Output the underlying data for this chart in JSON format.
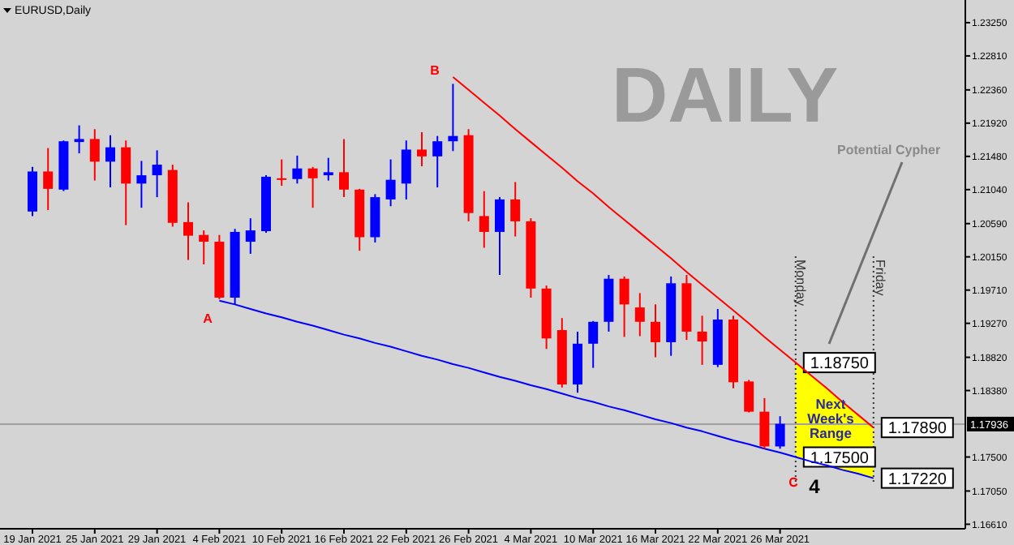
{
  "chart_data": {
    "type": "candlestick",
    "title": "EURUSD,Daily",
    "categories": [
      "19 Jan 2021",
      null,
      null,
      null,
      "25 Jan 2021",
      null,
      null,
      null,
      "29 Jan 2021",
      null,
      null,
      null,
      "4 Feb 2021",
      null,
      null,
      null,
      "10 Feb 2021",
      null,
      null,
      null,
      "16 Feb 2021",
      null,
      null,
      null,
      "22 Feb 2021",
      null,
      null,
      null,
      "26 Feb 2021",
      null,
      null,
      null,
      "4 Mar 2021",
      null,
      null,
      null,
      "10 Mar 2021",
      null,
      null,
      null,
      "16 Mar 2021",
      null,
      null,
      null,
      "22 Mar 2021",
      null,
      null,
      null,
      "26 Mar 2021",
      null,
      null,
      null,
      null,
      null,
      null,
      null
    ],
    "ohlc": [
      [
        1.2075,
        1.2134,
        1.2069,
        1.2128
      ],
      [
        1.2128,
        1.2159,
        1.2077,
        1.2105
      ],
      [
        1.2104,
        1.2169,
        1.2102,
        1.2168
      ],
      [
        1.2167,
        1.2189,
        1.2152,
        1.2171
      ],
      [
        1.2171,
        1.2184,
        1.2116,
        1.2141
      ],
      [
        1.2141,
        1.2176,
        1.2107,
        1.216
      ],
      [
        1.216,
        1.2169,
        1.2057,
        1.2112
      ],
      [
        1.2112,
        1.2142,
        1.208,
        1.2123
      ],
      [
        1.2123,
        1.2156,
        1.2094,
        1.2137
      ],
      [
        1.213,
        1.2137,
        1.2055,
        1.206
      ],
      [
        1.2061,
        1.2087,
        1.2011,
        1.2043
      ],
      [
        1.2044,
        1.205,
        1.2005,
        1.2035
      ],
      [
        1.2035,
        1.2044,
        1.1959,
        1.1961
      ],
      [
        1.1961,
        1.2052,
        1.1952,
        1.2048
      ],
      [
        1.2035,
        1.2066,
        1.2019,
        1.205
      ],
      [
        1.2049,
        1.2123,
        1.2047,
        1.2121
      ],
      [
        1.2119,
        1.2144,
        1.2109,
        1.2118
      ],
      [
        1.2118,
        1.2149,
        1.2112,
        1.2132
      ],
      [
        1.2132,
        1.2134,
        1.208,
        1.2119
      ],
      [
        1.2123,
        1.2146,
        1.2116,
        1.2127
      ],
      [
        1.2127,
        1.2171,
        1.2094,
        1.2104
      ],
      [
        1.2104,
        1.2105,
        1.2023,
        1.2041
      ],
      [
        1.2041,
        1.2098,
        1.2034,
        1.2094
      ],
      [
        1.2091,
        1.2144,
        1.2082,
        1.2117
      ],
      [
        1.2112,
        1.2169,
        1.2091,
        1.2157
      ],
      [
        1.2157,
        1.218,
        1.2135,
        1.2148
      ],
      [
        1.2148,
        1.2175,
        1.2107,
        1.2168
      ],
      [
        1.2168,
        1.2244,
        1.2155,
        1.2175
      ],
      [
        1.2176,
        1.2184,
        1.2062,
        1.2073
      ],
      [
        1.2069,
        1.2102,
        1.2027,
        1.2048
      ],
      [
        1.2048,
        1.2094,
        1.1991,
        1.2091
      ],
      [
        1.2091,
        1.2114,
        1.2042,
        1.2062
      ],
      [
        1.2062,
        1.2066,
        1.1961,
        1.1973
      ],
      [
        1.1973,
        1.1977,
        1.1893,
        1.1907
      ],
      [
        1.1918,
        1.1934,
        1.1842,
        1.1846
      ],
      [
        1.1846,
        1.1916,
        1.1835,
        1.19
      ],
      [
        1.19,
        1.193,
        1.1868,
        1.1929
      ],
      [
        1.1929,
        1.1991,
        1.1916,
        1.1986
      ],
      [
        1.1986,
        1.1989,
        1.1909,
        1.1952
      ],
      [
        1.1948,
        1.1967,
        1.191,
        1.1929
      ],
      [
        1.1929,
        1.1952,
        1.1882,
        1.1902
      ],
      [
        1.1902,
        1.1989,
        1.1884,
        1.198
      ],
      [
        1.198,
        1.1991,
        1.1905,
        1.1916
      ],
      [
        1.1916,
        1.1937,
        1.1872,
        1.1903
      ],
      [
        1.1872,
        1.1946,
        1.1869,
        1.1932
      ],
      [
        1.1932,
        1.1937,
        1.1841,
        1.1849
      ],
      [
        1.185,
        1.1852,
        1.1809,
        1.181
      ],
      [
        1.181,
        1.1828,
        1.1761,
        1.1764
      ],
      [
        1.1764,
        1.1804,
        1.1761,
        1.1794
      ],
      null,
      null,
      null,
      null,
      null,
      null,
      null
    ],
    "colors": [
      "#0000ff",
      "#ff0000",
      "#0000ff",
      "#0000ff",
      "#ff0000",
      "#0000ff",
      "#ff0000",
      "#0000ff",
      "#0000ff",
      "#ff0000",
      "#ff0000",
      "#ff0000",
      "#ff0000",
      "#0000ff",
      "#0000ff",
      "#0000ff",
      "#ff0000",
      "#0000ff",
      "#ff0000",
      "#0000ff",
      "#ff0000",
      "#ff0000",
      "#0000ff",
      "#0000ff",
      "#0000ff",
      "#ff0000",
      "#0000ff",
      "#0000ff",
      "#ff0000",
      "#ff0000",
      "#0000ff",
      "#ff0000",
      "#ff0000",
      "#ff0000",
      "#ff0000",
      "#0000ff",
      "#0000ff",
      "#0000ff",
      "#ff0000",
      "#ff0000",
      "#ff0000",
      "#0000ff",
      "#ff0000",
      "#ff0000",
      "#0000ff",
      "#ff0000",
      "#ff0000",
      "#ff0000",
      "#0000ff",
      null,
      null,
      null,
      null,
      null,
      null,
      null
    ],
    "series": [
      {
        "type": "line",
        "color": "#ff0000",
        "values": [
          null,
          null,
          null,
          null,
          null,
          null,
          null,
          null,
          null,
          null,
          null,
          null,
          null,
          null,
          null,
          null,
          null,
          null,
          null,
          null,
          null,
          null,
          null,
          null,
          null,
          null,
          null,
          1.2253,
          1.2236,
          1.2219,
          1.2202,
          1.2184,
          1.2167,
          1.215,
          1.2133,
          1.2115,
          1.2099,
          1.2081,
          1.2064,
          1.2047,
          1.203,
          1.2013,
          1.1995,
          1.1978,
          1.1961,
          1.1944,
          1.1927,
          1.1909,
          1.1892,
          1.1875,
          1.1858,
          1.1841,
          1.1823,
          1.1806,
          1.1789,
          null
        ],
        "value_labels": [
          null,
          null,
          null,
          null,
          null,
          null,
          null,
          null,
          null,
          null,
          null,
          null,
          null,
          null,
          null,
          null,
          null,
          null,
          null,
          null,
          null,
          null,
          null,
          null,
          null,
          null,
          null,
          null,
          null,
          null,
          null,
          null,
          null,
          null,
          null,
          null,
          null,
          null,
          null,
          null,
          null,
          null,
          null,
          null,
          null,
          null,
          null,
          null,
          null,
          "1.18750",
          null,
          null,
          null,
          null,
          "1.17890",
          null
        ]
      },
      {
        "type": "line",
        "color": "#0000ff",
        "values": [
          null,
          null,
          null,
          null,
          null,
          null,
          null,
          null,
          null,
          null,
          null,
          null,
          1.1957,
          1.1952,
          1.1946,
          1.194,
          1.1935,
          1.1929,
          1.1924,
          1.1918,
          1.1912,
          1.1907,
          1.1901,
          1.1896,
          1.189,
          1.1884,
          1.1879,
          1.1873,
          1.1868,
          1.1862,
          1.1856,
          1.1851,
          1.1845,
          1.184,
          1.1834,
          1.1828,
          1.1823,
          1.1817,
          1.1812,
          1.1806,
          1.18,
          1.1795,
          1.1789,
          1.1784,
          1.1778,
          1.1772,
          1.1767,
          1.1761,
          1.1756,
          1.175,
          1.1744,
          1.1739,
          1.1733,
          1.1728,
          1.1722,
          null
        ],
        "value_labels": [
          null,
          null,
          null,
          null,
          null,
          null,
          null,
          null,
          null,
          null,
          null,
          null,
          null,
          null,
          null,
          null,
          null,
          null,
          null,
          null,
          null,
          null,
          null,
          null,
          null,
          null,
          null,
          null,
          null,
          null,
          null,
          null,
          null,
          null,
          null,
          null,
          null,
          null,
          null,
          null,
          null,
          null,
          null,
          null,
          null,
          null,
          null,
          null,
          null,
          "1.17500",
          null,
          null,
          null,
          null,
          "1.17220",
          null
        ]
      }
    ],
    "ylim": [
      1.1655,
      1.2355
    ],
    "yticks": [
      {
        "value": 1.2325,
        "label": "1.23250"
      },
      {
        "value": 1.2281,
        "label": "1.22810"
      },
      {
        "value": 1.2236,
        "label": "1.22360"
      },
      {
        "value": 1.2192,
        "label": "1.21920"
      },
      {
        "value": 1.2148,
        "label": "1.21480"
      },
      {
        "value": 1.2104,
        "label": "1.21040"
      },
      {
        "value": 1.2059,
        "label": "1.20590"
      },
      {
        "value": 1.2015,
        "label": "1.20150"
      },
      {
        "value": 1.1971,
        "label": "1.19710"
      },
      {
        "value": 1.1927,
        "label": "1.19270"
      },
      {
        "value": 1.1882,
        "label": "1.18820"
      },
      {
        "value": 1.1838,
        "label": "1.18380"
      },
      {
        "value": 1.175,
        "label": "1.17500"
      },
      {
        "value": 1.1705,
        "label": "1.17050"
      },
      {
        "value": 1.1661,
        "label": "1.16610"
      }
    ],
    "ref_lines": [
      {
        "axis": "y",
        "value": 1.17936,
        "label": "1.17936",
        "color": "#a0a0a0",
        "line_style": "solid"
      }
    ],
    "annotations": [
      "DAILY",
      "Potential Cypher",
      "Next Week's Range",
      "A",
      "B",
      "C",
      "4",
      "Monday",
      "Friday"
    ]
  }
}
